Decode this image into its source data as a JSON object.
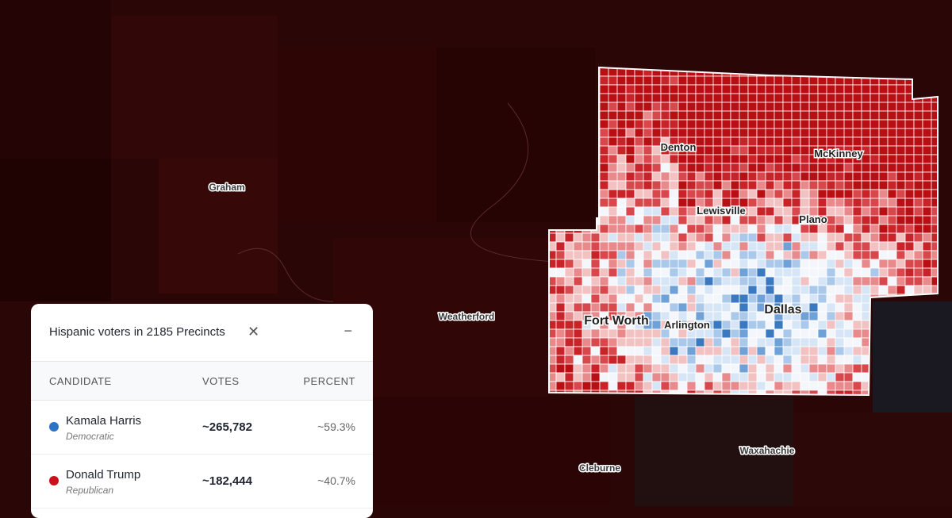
{
  "map": {
    "labels": [
      "Graham",
      "Weatherford",
      "Cleburne",
      "Waxahachie",
      "Denton",
      "McKinney",
      "Lewisville",
      "Plano",
      "Fort Worth",
      "Arlington",
      "Dallas"
    ]
  },
  "panel": {
    "title": "Hispanic voters in 2185 Precincts",
    "table": {
      "header": [
        "CANDIDATE",
        "VOTES",
        "PERCENT"
      ],
      "rows": [
        {
          "name": "Kamala Harris",
          "party": "Democratic",
          "votes": "~265,782",
          "percent": "~59.3%",
          "color": "#2e72c4"
        },
        {
          "name": "Donald Trump",
          "party": "Republican",
          "votes": "~182,444",
          "percent": "~40.7%",
          "color": "#c8111a"
        }
      ]
    }
  }
}
